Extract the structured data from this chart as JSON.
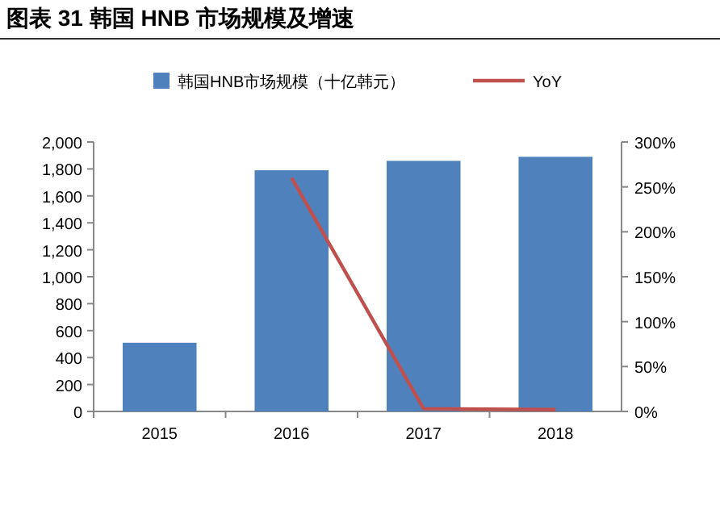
{
  "chart_data": {
    "type": "bar",
    "title": "图表 31 韩国 HNB 市场规模及增速",
    "categories": [
      "2015",
      "2016",
      "2017",
      "2018"
    ],
    "series": [
      {
        "name": "韩国HNB市场规模（十亿韩元）",
        "color": "#4f81bd",
        "values": [
          510,
          1790,
          1860,
          1890
        ]
      },
      {
        "name": "YoY",
        "type": "line",
        "axis": "y2",
        "color": "#c0504d",
        "values": [
          null,
          260,
          3,
          2
        ]
      }
    ],
    "ylim": [
      0,
      2000
    ],
    "yticks": [
      0,
      {
        "value": 200,
        "label": "200"
      },
      {
        "value": 400,
        "label": "400"
      },
      {
        "value": 600,
        "label": "600"
      },
      {
        "value": 800,
        "label": "800"
      },
      {
        "value": 1000,
        "label": "1,000"
      },
      {
        "value": 1200,
        "label": "1,200"
      },
      {
        "value": 1400,
        "label": "1,400"
      },
      {
        "value": 1600,
        "label": "1,600"
      },
      {
        "value": 1800,
        "label": "1,800"
      },
      {
        "value": 2000,
        "label": "2,000"
      }
    ],
    "y2lim": [
      0,
      300
    ],
    "y2ticks": [
      {
        "value": 0,
        "label": "0%"
      },
      {
        "value": 50,
        "label": "50%"
      },
      {
        "value": 100,
        "label": "100%"
      },
      {
        "value": 150,
        "label": "150%"
      },
      {
        "value": 200,
        "label": "200%"
      },
      {
        "value": 250,
        "label": "250%"
      },
      {
        "value": 300,
        "label": "300%"
      }
    ],
    "legend": "top",
    "marker": "none",
    "line_style": "solid"
  }
}
